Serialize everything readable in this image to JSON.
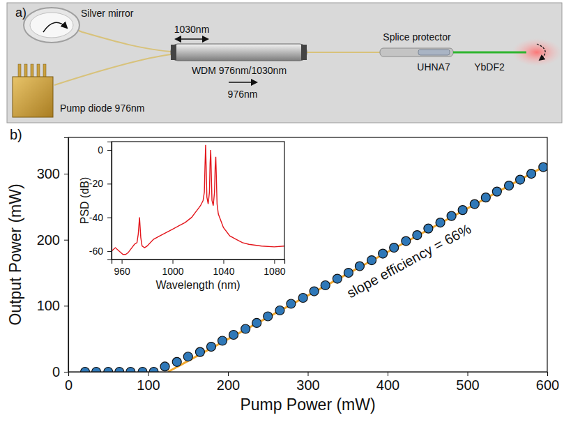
{
  "diagram": {
    "panel": "a)",
    "mirror": "Silver mirror",
    "laser_wavelength": "1030nm",
    "wdm": "WDM 976nm/1030nm",
    "splice": "Splice protector",
    "pump": "Pump diode 976nm",
    "pump_wavelength": "976nm",
    "fiber_1": "UHNA7",
    "fiber_2": "YbDF2"
  },
  "chart_data": [
    {
      "type": "scatter",
      "panel": "b)",
      "x_label": "Pump Power (mW)",
      "y_label": "Output Power (mW)",
      "xlim": [
        0,
        600
      ],
      "xticks": [
        0,
        100,
        200,
        300,
        400,
        500,
        600
      ],
      "ylim": [
        0,
        355
      ],
      "yticks": [
        0,
        100,
        200,
        300
      ],
      "annotations": [
        "slope efficiency = 66%"
      ],
      "series": [
        {
          "type": "scatter",
          "color": "#2f78b8",
          "marker": "circle",
          "x": [
            21,
            35,
            50,
            64,
            78,
            93,
            107,
            121,
            136,
            150,
            165,
            179,
            193,
            207,
            222,
            236,
            250,
            265,
            279,
            294,
            308,
            322,
            337,
            351,
            365,
            380,
            394,
            408,
            423,
            437,
            451,
            466,
            480,
            494,
            509,
            523,
            537,
            552,
            566,
            580,
            595
          ],
          "values": [
            0,
            0,
            0,
            0,
            0,
            0,
            0,
            8,
            15,
            23,
            30,
            38,
            47,
            56,
            65,
            74,
            84,
            93,
            103,
            112,
            122,
            131,
            141,
            150,
            160,
            169,
            179,
            188,
            198,
            207,
            217,
            226,
            236,
            245,
            254,
            264,
            273,
            282,
            291,
            300,
            310
          ]
        },
        {
          "type": "line",
          "color": "#f0a830",
          "line_style": "solid",
          "x": [
            125,
            600
          ],
          "values": [
            0,
            313.5
          ]
        }
      ]
    },
    {
      "type": "line",
      "x_label": "Wavelength (nm)",
      "y_label": "PSD (dB)",
      "xlim": [
        952,
        1088
      ],
      "xticks": [
        960,
        1000,
        1040,
        1080
      ],
      "ylim": [
        -65,
        5
      ],
      "yticks": [
        0,
        -20,
        -40,
        -60
      ],
      "series": [
        {
          "type": "line",
          "color": "#e3161c",
          "line_style": "solid",
          "x": [
            952,
            955,
            958,
            961,
            963,
            965,
            968,
            970,
            972,
            973,
            974,
            975,
            976,
            978,
            980,
            985,
            990,
            995,
            1000,
            1005,
            1010,
            1015,
            1018,
            1020,
            1022,
            1024,
            1025,
            1025.5,
            1026,
            1026.5,
            1027,
            1028,
            1029,
            1029.5,
            1030,
            1030.5,
            1031,
            1032,
            1033,
            1033.5,
            1034,
            1034.5,
            1035,
            1036,
            1038,
            1040,
            1045,
            1050,
            1055,
            1060,
            1070,
            1080,
            1088
          ],
          "values": [
            -60,
            -58,
            -60,
            -62,
            -62,
            -61,
            -58,
            -56,
            -55,
            -50,
            -40,
            -52,
            -57,
            -58,
            -57,
            -53,
            -51,
            -49,
            -47,
            -45,
            -43,
            -40,
            -37,
            -35,
            -33,
            -30,
            -25,
            -10,
            3,
            -12,
            -28,
            -32,
            -25,
            -8,
            0,
            -15,
            -30,
            -33,
            -25,
            -10,
            -4,
            -18,
            -32,
            -38,
            -42,
            -46,
            -51,
            -53,
            -55,
            -56,
            -57,
            -57.5,
            -57
          ]
        }
      ]
    }
  ]
}
